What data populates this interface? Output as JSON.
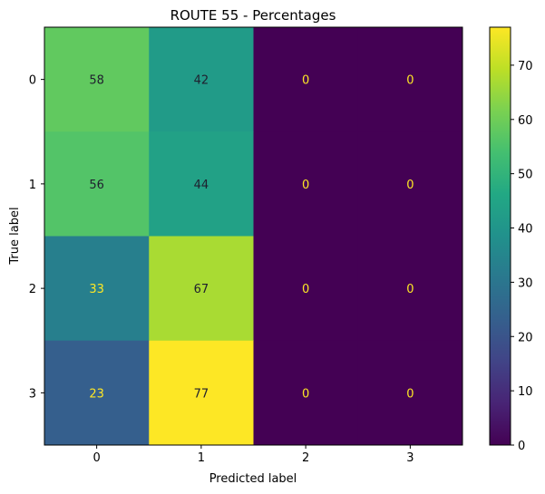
{
  "chart_data": {
    "type": "heatmap",
    "title": "ROUTE 55  - Percentages",
    "xlabel": "Predicted label",
    "ylabel": "True label",
    "x_categories": [
      "0",
      "1",
      "2",
      "3"
    ],
    "y_categories": [
      "0",
      "1",
      "2",
      "3"
    ],
    "values": [
      [
        58,
        42,
        0,
        0
      ],
      [
        56,
        44,
        0,
        0
      ],
      [
        33,
        67,
        0,
        0
      ],
      [
        23,
        77,
        0,
        0
      ]
    ],
    "colormap": "viridis",
    "colorbar": {
      "range": [
        0,
        77
      ],
      "ticks": [
        0,
        10,
        20,
        30,
        40,
        50,
        60,
        70
      ]
    },
    "grid": false
  }
}
